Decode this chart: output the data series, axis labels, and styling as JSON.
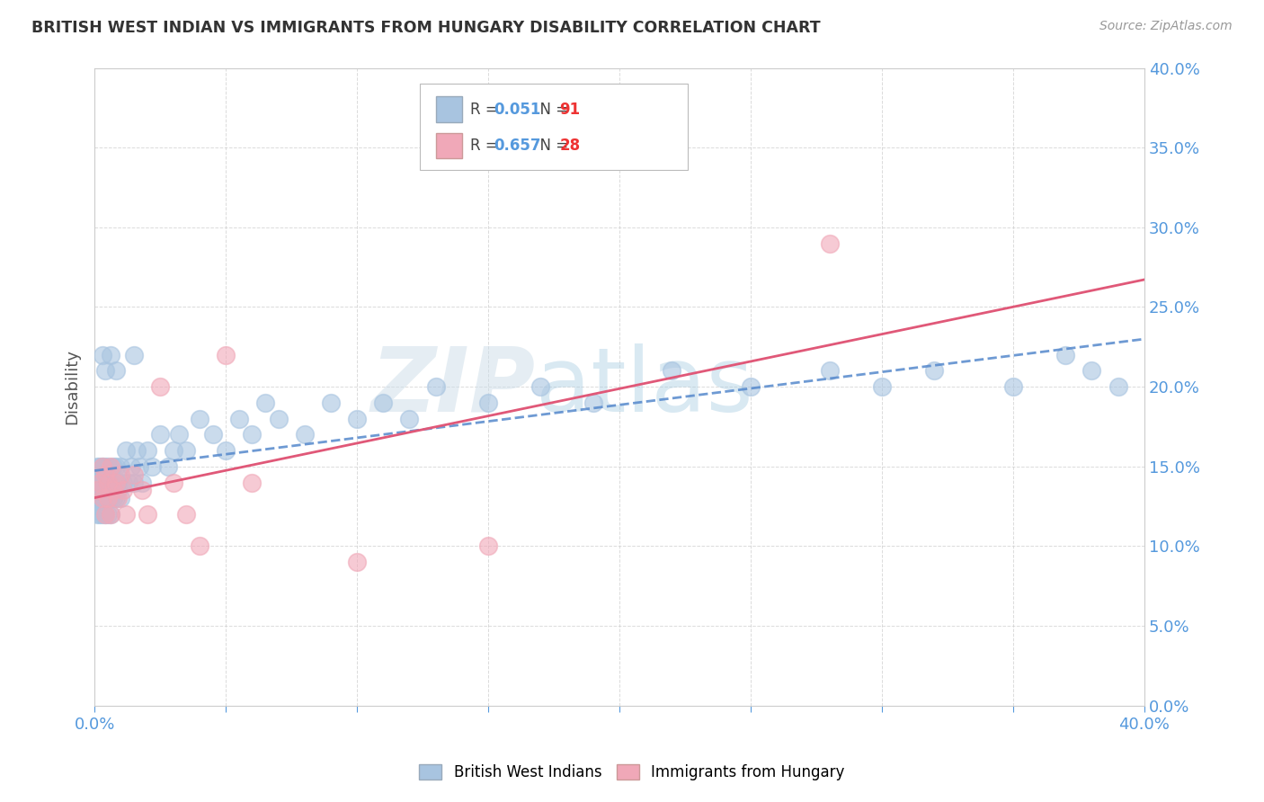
{
  "title": "BRITISH WEST INDIAN VS IMMIGRANTS FROM HUNGARY DISABILITY CORRELATION CHART",
  "source": "Source: ZipAtlas.com",
  "ylabel": "Disability",
  "xlim": [
    0.0,
    0.4
  ],
  "ylim": [
    0.0,
    0.4
  ],
  "xticks": [
    0.0,
    0.05,
    0.1,
    0.15,
    0.2,
    0.25,
    0.3,
    0.35,
    0.4
  ],
  "yticks": [
    0.0,
    0.05,
    0.1,
    0.15,
    0.2,
    0.25,
    0.3,
    0.35,
    0.4
  ],
  "series1_name": "British West Indians",
  "series1_color": "#a8c4e0",
  "series1_edge_color": "#7aaac8",
  "series1_R": 0.051,
  "series1_N": 91,
  "series1_trend_color": "#5588cc",
  "series2_name": "Immigrants from Hungary",
  "series2_color": "#f0a8b8",
  "series2_edge_color": "#d88898",
  "series2_R": 0.657,
  "series2_N": 28,
  "series2_trend_color": "#e05878",
  "background_color": "#ffffff",
  "grid_color": "#cccccc",
  "tick_color": "#5599dd",
  "legend_R_color": "#5599dd",
  "legend_N_color": "#ee3333",
  "series1_x": [
    0.001,
    0.001,
    0.001,
    0.001,
    0.001,
    0.002,
    0.002,
    0.002,
    0.002,
    0.002,
    0.002,
    0.002,
    0.002,
    0.002,
    0.003,
    0.003,
    0.003,
    0.003,
    0.003,
    0.003,
    0.003,
    0.004,
    0.004,
    0.004,
    0.004,
    0.004,
    0.004,
    0.005,
    0.005,
    0.005,
    0.005,
    0.005,
    0.006,
    0.006,
    0.006,
    0.006,
    0.007,
    0.007,
    0.007,
    0.008,
    0.008,
    0.008,
    0.009,
    0.009,
    0.01,
    0.01,
    0.011,
    0.012,
    0.013,
    0.014,
    0.015,
    0.016,
    0.017,
    0.018,
    0.02,
    0.022,
    0.025,
    0.028,
    0.03,
    0.032,
    0.035,
    0.04,
    0.045,
    0.05,
    0.055,
    0.06,
    0.065,
    0.07,
    0.08,
    0.09,
    0.1,
    0.11,
    0.12,
    0.13,
    0.15,
    0.17,
    0.19,
    0.22,
    0.25,
    0.28,
    0.3,
    0.32,
    0.35,
    0.37,
    0.38,
    0.39,
    0.015,
    0.008,
    0.006,
    0.004,
    0.003
  ],
  "series1_y": [
    0.13,
    0.14,
    0.12,
    0.15,
    0.135,
    0.12,
    0.14,
    0.13,
    0.145,
    0.15,
    0.125,
    0.135,
    0.13,
    0.14,
    0.13,
    0.14,
    0.15,
    0.12,
    0.13,
    0.14,
    0.135,
    0.14,
    0.15,
    0.13,
    0.12,
    0.14,
    0.145,
    0.13,
    0.14,
    0.12,
    0.135,
    0.15,
    0.13,
    0.14,
    0.12,
    0.145,
    0.14,
    0.13,
    0.15,
    0.13,
    0.14,
    0.15,
    0.135,
    0.14,
    0.13,
    0.15,
    0.14,
    0.16,
    0.14,
    0.15,
    0.14,
    0.16,
    0.15,
    0.14,
    0.16,
    0.15,
    0.17,
    0.15,
    0.16,
    0.17,
    0.16,
    0.18,
    0.17,
    0.16,
    0.18,
    0.17,
    0.19,
    0.18,
    0.17,
    0.19,
    0.18,
    0.19,
    0.18,
    0.2,
    0.19,
    0.2,
    0.19,
    0.21,
    0.2,
    0.21,
    0.2,
    0.21,
    0.2,
    0.22,
    0.21,
    0.2,
    0.22,
    0.21,
    0.22,
    0.21,
    0.22
  ],
  "series2_x": [
    0.001,
    0.002,
    0.003,
    0.003,
    0.004,
    0.004,
    0.005,
    0.005,
    0.006,
    0.006,
    0.007,
    0.008,
    0.009,
    0.01,
    0.011,
    0.012,
    0.015,
    0.018,
    0.02,
    0.025,
    0.03,
    0.035,
    0.04,
    0.05,
    0.06,
    0.1,
    0.15,
    0.28
  ],
  "series2_y": [
    0.135,
    0.14,
    0.13,
    0.15,
    0.12,
    0.145,
    0.13,
    0.14,
    0.12,
    0.15,
    0.135,
    0.14,
    0.13,
    0.145,
    0.135,
    0.12,
    0.145,
    0.135,
    0.12,
    0.2,
    0.14,
    0.12,
    0.1,
    0.22,
    0.14,
    0.09,
    0.1,
    0.29
  ]
}
